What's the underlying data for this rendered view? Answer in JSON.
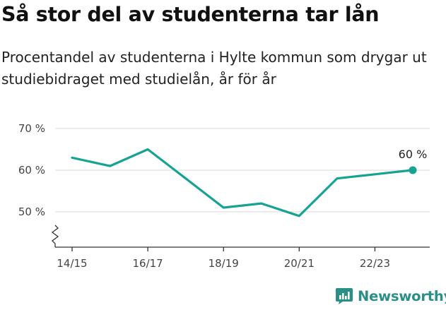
{
  "header": {
    "title": "Så stor del av studenterna tar lån",
    "subtitle": "Procentandel av studenterna i Hylte kommun som drygar ut studiebidraget med studielån, år för år"
  },
  "brand": {
    "name": "Newsworthy",
    "icon": "newsworthy-logo-icon"
  },
  "colors": {
    "line": "#17a393",
    "grid": "#d9d9d9",
    "axis": "#333333",
    "brand": "#2a8f86"
  },
  "chart_data": {
    "type": "line",
    "title": "",
    "xlabel": "",
    "ylabel": "",
    "x": [
      "14/15",
      "15/16",
      "16/17",
      "17/18",
      "18/19",
      "19/20",
      "20/21",
      "21/22",
      "22/23",
      "23/24"
    ],
    "x_tick_labels": [
      "14/15",
      "16/17",
      "18/19",
      "20/21",
      "22/23"
    ],
    "series": [
      {
        "values": [
          63,
          61,
          65,
          58,
          51,
          52,
          49,
          58,
          59,
          60
        ]
      }
    ],
    "y_ticks": [
      50,
      60,
      70
    ],
    "y_tick_labels": [
      "50 %",
      "60 %",
      "70 %"
    ],
    "ylim": [
      41.5,
      70
    ],
    "y_axis_break": true,
    "grid": true,
    "end_label": "60 %"
  }
}
